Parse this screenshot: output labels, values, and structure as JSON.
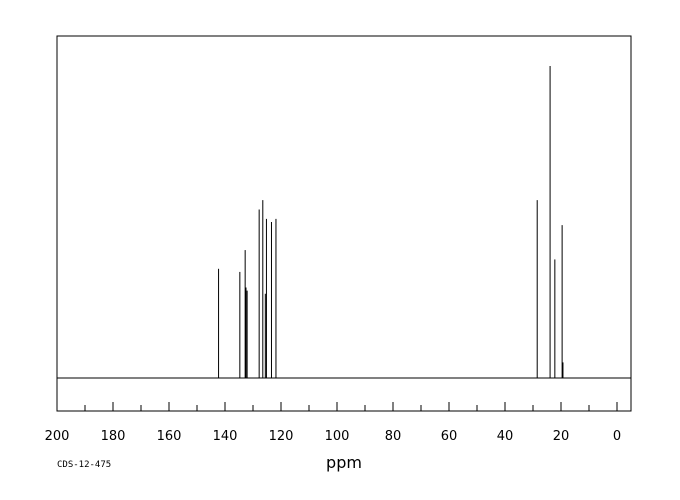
{
  "chart_data": {
    "type": "line",
    "title": "",
    "xlabel": "ppm",
    "ylabel": "",
    "xlim": [
      200,
      -5
    ],
    "ylim": [
      0,
      100
    ],
    "x_axis_reversed": true,
    "x_tick_values": [
      200,
      180,
      160,
      140,
      120,
      100,
      80,
      60,
      40,
      20,
      0
    ],
    "x_tick_labels": [
      "200",
      "180",
      "160",
      "140",
      "120",
      "100",
      "80",
      "60",
      "40",
      "20",
      "0"
    ],
    "grid": false,
    "legend": "none",
    "peaks": [
      {
        "x": 142.3,
        "y": 35
      },
      {
        "x": 134.7,
        "y": 34
      },
      {
        "x": 132.8,
        "y": 41
      },
      {
        "x": 132.5,
        "y": 29
      },
      {
        "x": 132.1,
        "y": 28
      },
      {
        "x": 127.8,
        "y": 54
      },
      {
        "x": 126.5,
        "y": 57
      },
      {
        "x": 125.6,
        "y": 27
      },
      {
        "x": 125.2,
        "y": 51
      },
      {
        "x": 123.4,
        "y": 50
      },
      {
        "x": 121.8,
        "y": 51
      },
      {
        "x": 28.5,
        "y": 57
      },
      {
        "x": 23.9,
        "y": 100
      },
      {
        "x": 22.2,
        "y": 38
      },
      {
        "x": 19.6,
        "y": 49
      },
      {
        "x": 19.3,
        "y": 5
      }
    ]
  },
  "footer_code": "CDS-12-475",
  "colors": {
    "line": "#000000",
    "frame": "#000000",
    "background": "#ffffff"
  }
}
